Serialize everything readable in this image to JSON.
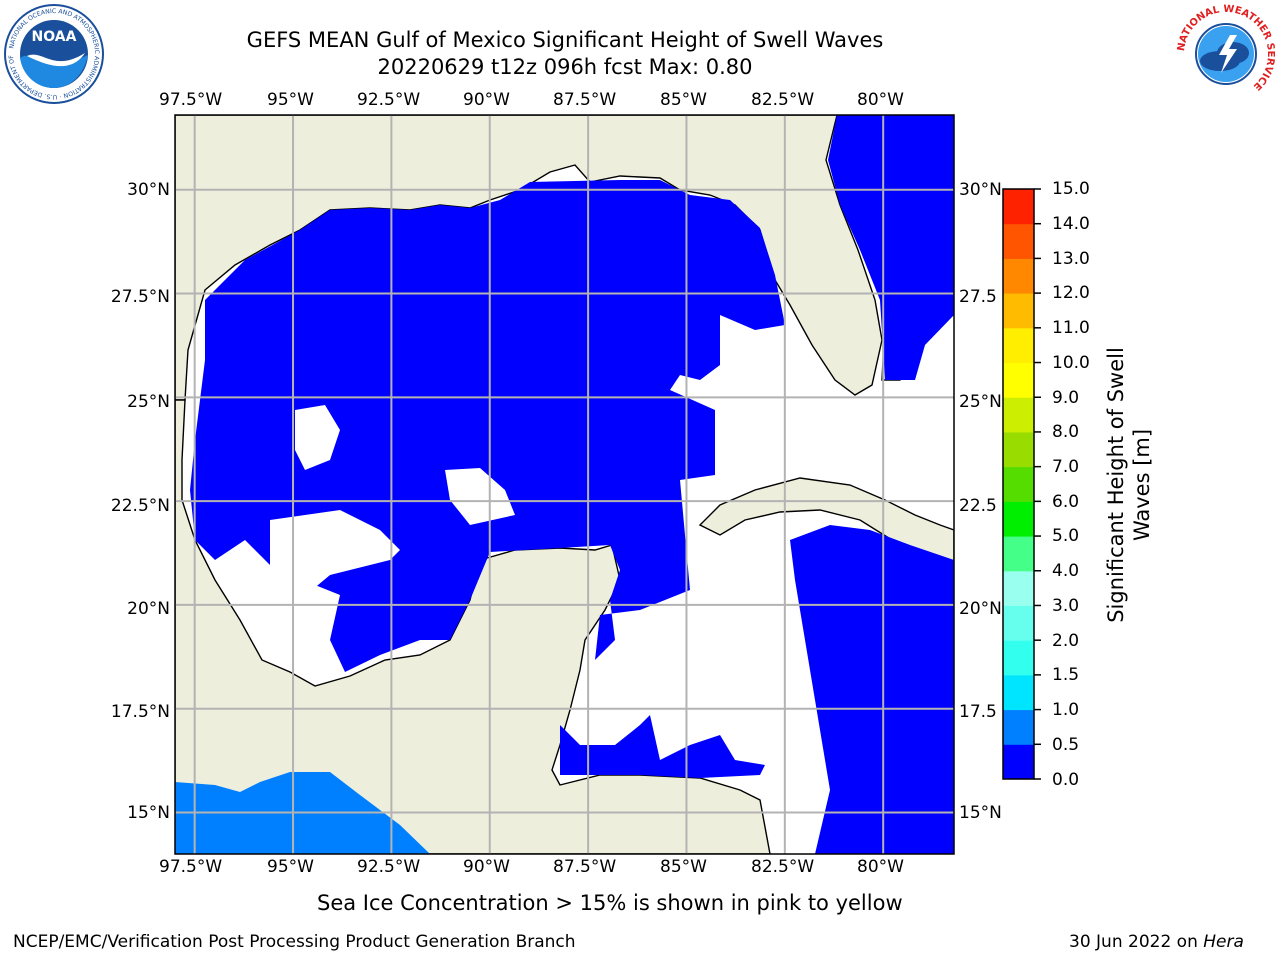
{
  "header": {
    "title_line1": "GEFS MEAN Gulf of Mexico Significant Height of Swell Waves",
    "title_line2": "20220629 t12z 096h fcst   Max: 0.80"
  },
  "logos": {
    "left": {
      "text": "NOAA",
      "ring_text": "NATIONAL OCEANIC AND ATMOSPHERIC ADMINISTRATION · U.S. DEPARTMENT OF COMMERCE",
      "color": "#1a4f9c"
    },
    "right": {
      "ring_text": "NATIONAL WEATHER SERVICE",
      "color": "#e02020"
    }
  },
  "map": {
    "lon_labels": [
      "97.5°W",
      "95°W",
      "92.5°W",
      "90°W",
      "87.5°W",
      "85°W",
      "82.5°W",
      "80°W"
    ],
    "lat_labels_left": [
      "30°N",
      "27.5°N",
      "25°N",
      "22.5°N",
      "20°N",
      "17.5°N",
      "15°N"
    ],
    "lat_labels_right": [
      "30°N",
      "27.5",
      "25°N",
      "22.5",
      "20°N",
      "17.5",
      "15°N"
    ],
    "lon_range": [
      -98,
      -78.2
    ],
    "lat_range": [
      14,
      31.8
    ],
    "land_color": "#eeeedd",
    "swell_color": "#0000ff",
    "pacific_color": "#0080ff"
  },
  "colorbar": {
    "label_line1": "Significant Height of Swell",
    "label_line2": "Waves [m]",
    "ticks": [
      "15.0",
      "14.0",
      "13.0",
      "12.0",
      "11.0",
      "10.0",
      "9.0",
      "8.0",
      "7.0",
      "6.0",
      "5.0",
      "4.0",
      "3.0",
      "2.0",
      "1.5",
      "1.0",
      "0.5",
      "0.0"
    ],
    "bins": [
      0,
      0.5,
      1.0,
      1.5,
      2.0,
      3.0,
      4.0,
      5.0,
      6.0,
      7.0,
      8.0,
      9.0,
      10.0,
      11.0,
      12.0,
      13.0,
      14.0,
      15.0
    ],
    "colors": [
      "#0000ff",
      "#0080ff",
      "#00e5ff",
      "#33ffee",
      "#66ffee",
      "#99ffee",
      "#44ff88",
      "#00ee00",
      "#55dd00",
      "#99dd00",
      "#ccee00",
      "#ffff00",
      "#ffee00",
      "#ffbb00",
      "#ff8800",
      "#ff5500",
      "#ff2200"
    ]
  },
  "note": "Sea Ice Concentration > 15% is shown in pink to yellow",
  "footer": {
    "left": "NCEP/EMC/Verification Post Processing Product Generation Branch",
    "right_prefix": "30 Jun 2022 on ",
    "right_host": "Hera"
  }
}
